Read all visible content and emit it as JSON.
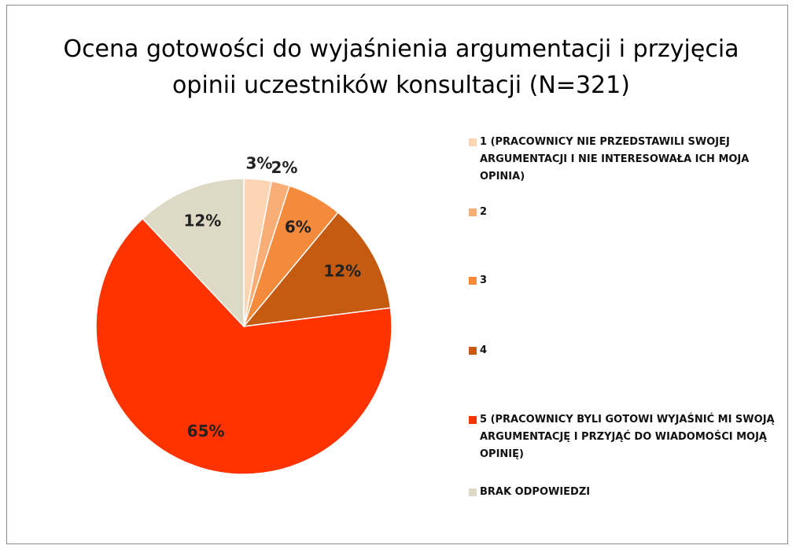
{
  "chart_data": {
    "type": "pie",
    "title": "Ocena gotowości do wyjaśnienia argumentacji i przyjęcia opinii uczestników konsultacji (N=321)",
    "categories": [
      "1 (PRACOWNICY NIE PRZEDSTAWILI SWOJEJ ARGUMENTACJI I NIE INTERESOWAŁA ICH MOJA OPINIA)",
      "2",
      "3",
      "4",
      "5 (PRACOWNICY BYLI GOTOWI WYJAŚNIĆ MI SWOJĄ ARGUMENTACJĘ I PRZYJĄĆ DO WIADOMOŚCI MOJĄ OPINIĘ)",
      "BRAK ODPOWIEDZI"
    ],
    "values": [
      3,
      2,
      6,
      12,
      65,
      12
    ],
    "value_labels": [
      "3%",
      "2%",
      "6%",
      "12%",
      "65%",
      "12%"
    ],
    "colors": [
      "#fcd5b4",
      "#f9ae78",
      "#f48a3c",
      "#c55a11",
      "#ff3300",
      "#ddd9c4"
    ],
    "legend": "right"
  }
}
